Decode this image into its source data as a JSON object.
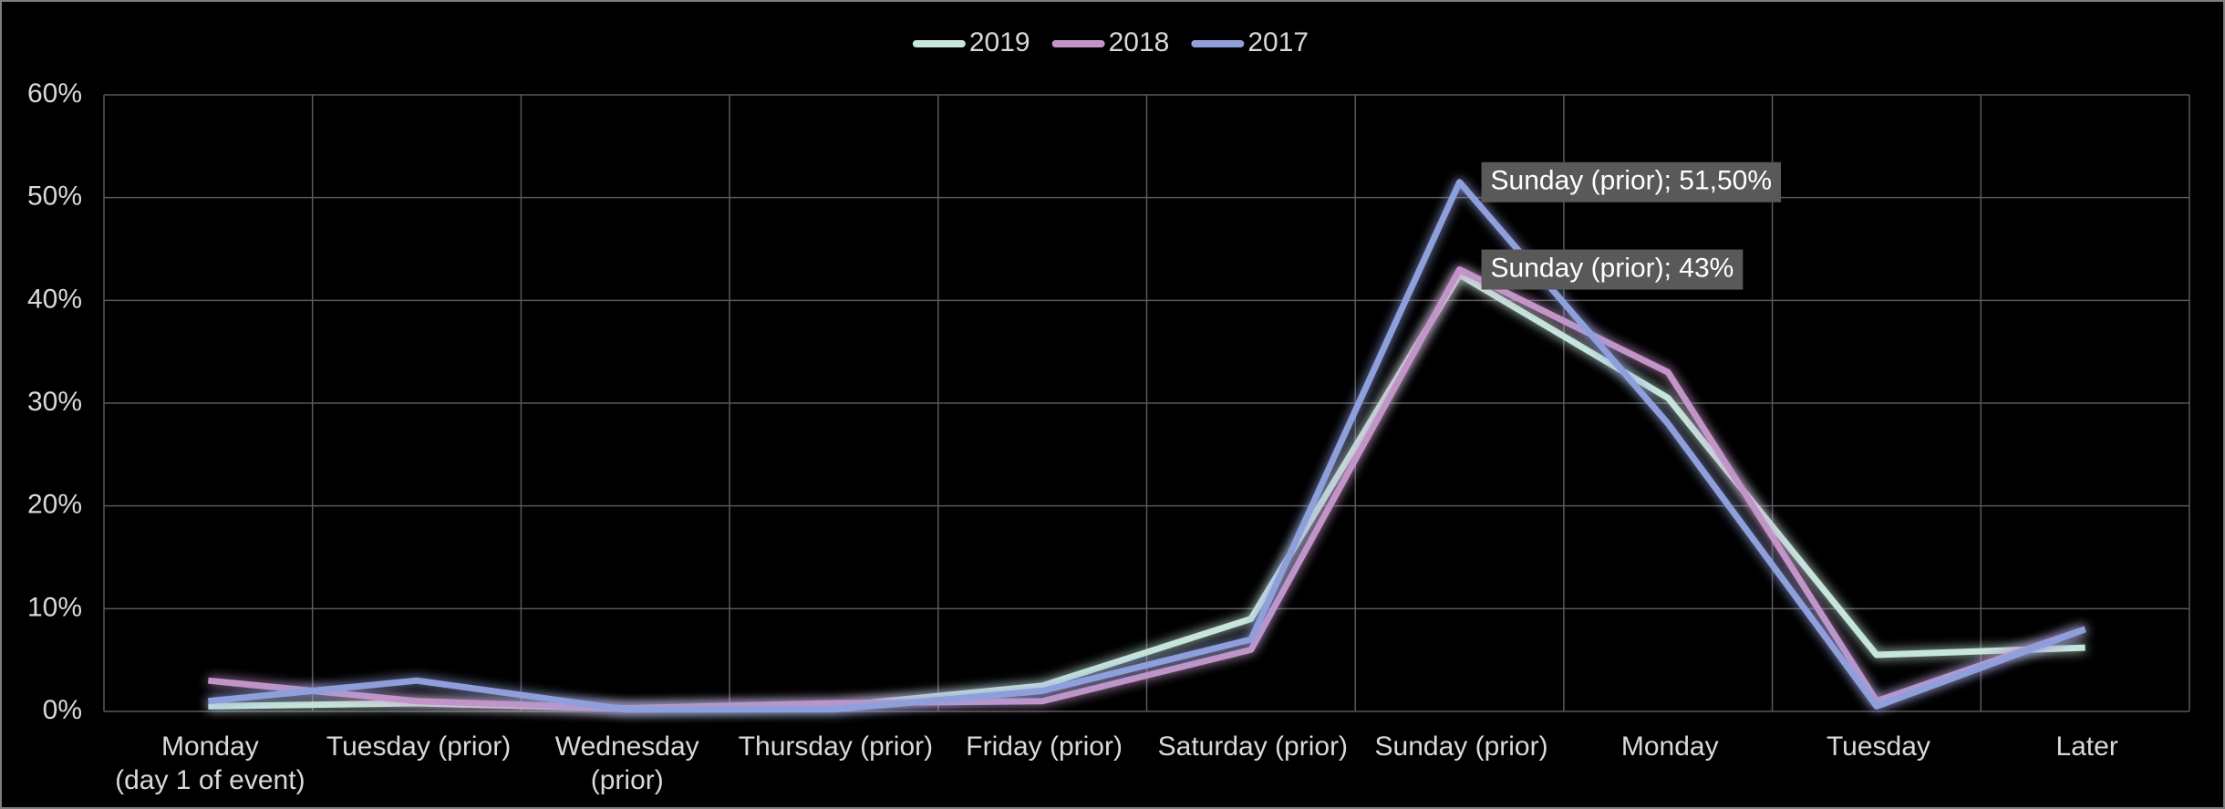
{
  "chart_data": {
    "type": "line",
    "categories": [
      "Monday\n(day 1 of event)",
      "Tuesday (prior)",
      "Wednesday\n(prior)",
      "Thursday (prior)",
      "Friday (prior)",
      "Saturday (prior)",
      "Sunday (prior)",
      "Monday",
      "Tuesday",
      "Later"
    ],
    "series": [
      {
        "name": "2019",
        "color": "#c6e6dc",
        "values": [
          0.5,
          0.8,
          0.3,
          0.5,
          2.5,
          9,
          42.5,
          30.5,
          5.5,
          6.2
        ]
      },
      {
        "name": "2018",
        "color": "#c394c8",
        "values": [
          3,
          1,
          0.3,
          0.8,
          1,
          6,
          43,
          33,
          1,
          8
        ],
        "value_labels": [
          null,
          null,
          null,
          null,
          null,
          null,
          "Sunday (prior); 43%",
          null,
          null,
          null
        ]
      },
      {
        "name": "2017",
        "color": "#8f9fdb",
        "values": [
          1,
          3,
          0.2,
          0.2,
          2,
          7,
          51.5,
          28,
          0.5,
          8
        ],
        "value_labels": [
          null,
          null,
          null,
          null,
          null,
          null,
          "Sunday (prior); 51,50%",
          null,
          null,
          null
        ]
      }
    ],
    "ylim": [
      0,
      60
    ],
    "yticks": [
      {
        "value": 0,
        "label": "0%"
      },
      {
        "value": 10,
        "label": "10%"
      },
      {
        "value": 20,
        "label": "20%"
      },
      {
        "value": 30,
        "label": "30%"
      },
      {
        "value": 40,
        "label": "40%"
      },
      {
        "value": 50,
        "label": "50%"
      },
      {
        "value": 60,
        "label": "60%"
      }
    ],
    "grid": true,
    "legend": "top"
  }
}
